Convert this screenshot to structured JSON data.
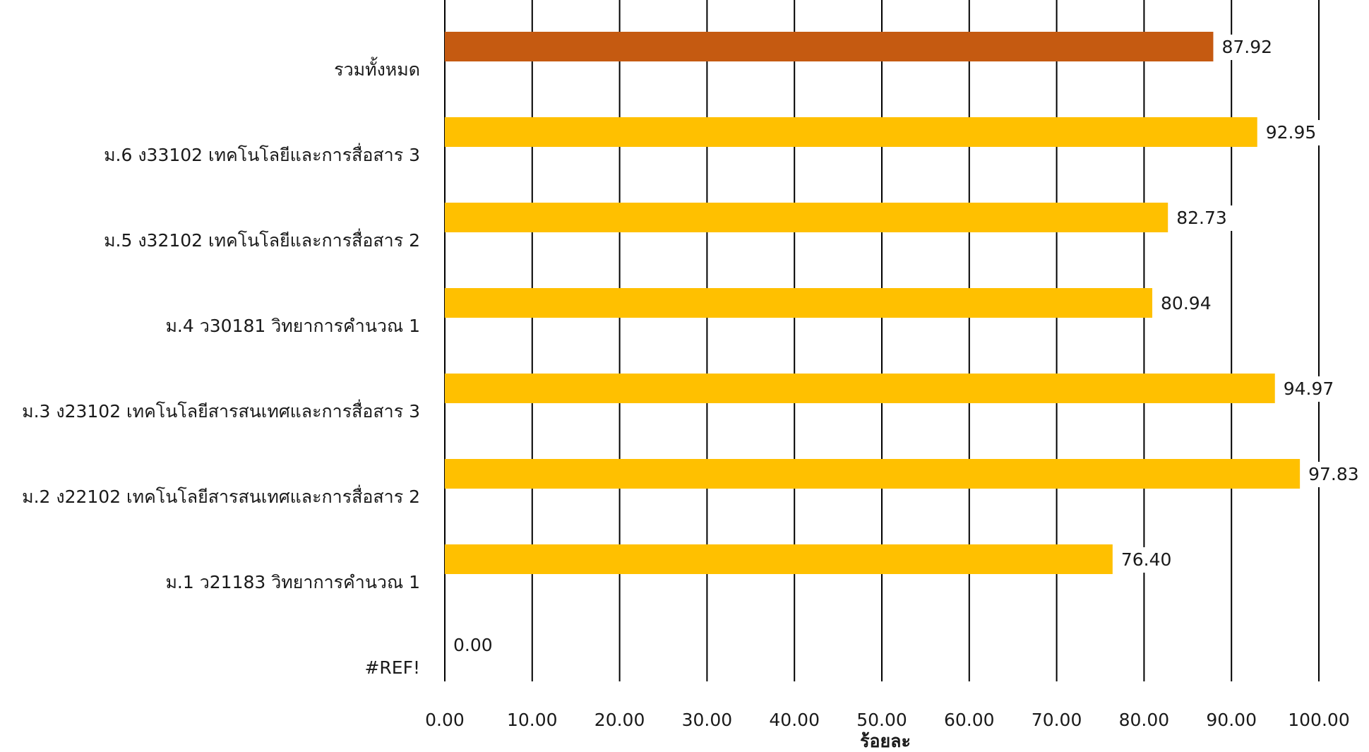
{
  "chart_data": {
    "type": "bar",
    "orientation": "horizontal",
    "title": "",
    "xlabel": "ร้อยละ",
    "ylabel": "",
    "xlim": [
      0,
      100
    ],
    "x_ticks": [
      "0.00",
      "10.00",
      "20.00",
      "30.00",
      "40.00",
      "50.00",
      "60.00",
      "70.00",
      "80.00",
      "90.00",
      "100.00"
    ],
    "grid": "vertical",
    "categories": [
      "#REF!",
      "ม.1  ว21183  วิทยาการคำนวณ  1",
      "ม.2  ง22102  เทคโนโลยีสารสนเทศและการสื่อสาร  2",
      "ม.3  ง23102  เทคโนโลยีสารสนเทศและการสื่อสาร  3",
      "ม.4  ว30181  วิทยาการคำนวณ  1",
      "ม.5  ง32102  เทคโนโลยีและการสื่อสาร  2",
      "ม.6  ง33102  เทคโนโลยีและการสื่อสาร  3",
      "รวมทั้งหมด"
    ],
    "values": [
      0.0,
      76.4,
      97.83,
      94.97,
      80.94,
      82.73,
      92.95,
      87.92
    ],
    "data_labels": [
      "0.00",
      "76.40",
      "97.83",
      "94.97",
      "80.94",
      "82.73",
      "92.95",
      "87.92"
    ],
    "colors": {
      "default_bar": "#FFC000",
      "total_bar": "#C55A11",
      "gridline": "#000000",
      "text": "#1a1a1a"
    },
    "highlight_category": "รวมทั้งหมด"
  }
}
